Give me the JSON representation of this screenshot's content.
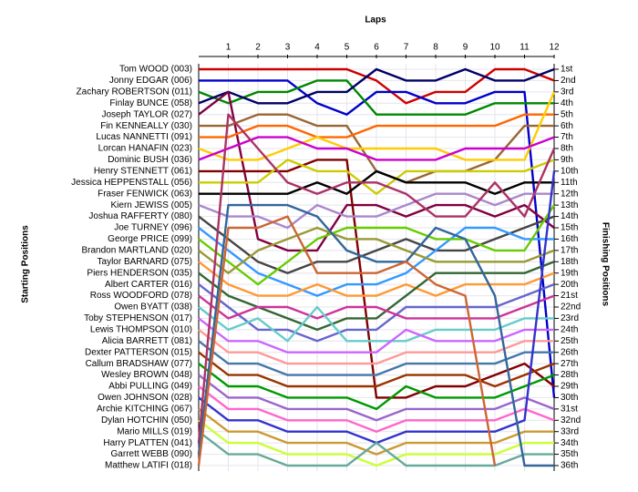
{
  "chart_data": {
    "type": "line",
    "title": "Laps",
    "ylabel": "Starting Positions",
    "y2label": "Finishing Positions",
    "x": [
      0,
      1,
      2,
      3,
      4,
      5,
      6,
      7,
      8,
      9,
      10,
      11,
      12
    ],
    "xlim": [
      0,
      12
    ],
    "xticks": [
      1,
      2,
      3,
      4,
      5,
      6,
      7,
      8,
      9,
      10,
      11,
      12
    ],
    "ylim": [
      36,
      1
    ],
    "yticks": [
      {
        "value": 1,
        "label": "1st"
      },
      {
        "value": 2,
        "label": "2nd"
      },
      {
        "value": 3,
        "label": "3rd"
      },
      {
        "value": 4,
        "label": "4th"
      },
      {
        "value": 5,
        "label": "5th"
      },
      {
        "value": 6,
        "label": "6th"
      },
      {
        "value": 7,
        "label": "7th"
      },
      {
        "value": 8,
        "label": "8th"
      },
      {
        "value": 9,
        "label": "9th"
      },
      {
        "value": 10,
        "label": "10th"
      },
      {
        "value": 11,
        "label": "11th"
      },
      {
        "value": 12,
        "label": "12th"
      },
      {
        "value": 13,
        "label": "13th"
      },
      {
        "value": 14,
        "label": "14th"
      },
      {
        "value": 15,
        "label": "15th"
      },
      {
        "value": 16,
        "label": "16th"
      },
      {
        "value": 17,
        "label": "17th"
      },
      {
        "value": 18,
        "label": "18th"
      },
      {
        "value": 19,
        "label": "19th"
      },
      {
        "value": 20,
        "label": "20th"
      },
      {
        "value": 21,
        "label": "21st"
      },
      {
        "value": 22,
        "label": "22nd"
      },
      {
        "value": 23,
        "label": "23rd"
      },
      {
        "value": 24,
        "label": "24th"
      },
      {
        "value": 25,
        "label": "25th"
      },
      {
        "value": 26,
        "label": "26th"
      },
      {
        "value": 27,
        "label": "27th"
      },
      {
        "value": 28,
        "label": "28th"
      },
      {
        "value": 29,
        "label": "29th"
      },
      {
        "value": 30,
        "label": "30th"
      },
      {
        "value": 31,
        "label": "31st"
      },
      {
        "value": 32,
        "label": "32nd"
      },
      {
        "value": 33,
        "label": "33rd"
      },
      {
        "value": 34,
        "label": "34th"
      },
      {
        "value": 35,
        "label": "35th"
      },
      {
        "value": 36,
        "label": "36th"
      }
    ],
    "grid": true,
    "series": [
      {
        "name": "Tom WOOD (003)",
        "color": "#cc0000",
        "values": [
          1,
          1,
          1,
          1,
          1,
          1,
          2,
          4,
          3,
          3,
          1,
          1,
          2
        ]
      },
      {
        "name": "Jonny EDGAR (006)",
        "color": "#0000cc",
        "values": [
          2,
          2,
          2,
          2,
          4,
          5,
          3,
          3,
          4,
          4,
          3,
          3,
          30
        ]
      },
      {
        "name": "Zachary ROBERTSON (011)",
        "color": "#008800",
        "values": [
          3,
          4,
          3,
          3,
          2,
          2,
          5,
          5,
          5,
          5,
          4,
          4,
          4
        ]
      },
      {
        "name": "Finlay BUNCE (058)",
        "color": "#000066",
        "values": [
          4,
          3,
          4,
          4,
          3,
          3,
          1,
          2,
          2,
          1,
          2,
          2,
          1
        ]
      },
      {
        "name": "Joseph TAYLOR (027)",
        "color": "#800040",
        "values": [
          5,
          3,
          16,
          17,
          17,
          13,
          13,
          14,
          13,
          13,
          14,
          13,
          15
        ]
      },
      {
        "name": "Fin KENNEALLY (030)",
        "color": "#996633",
        "values": [
          6,
          6,
          5,
          5,
          6,
          6,
          10,
          11,
          10,
          10,
          9,
          6,
          6
        ]
      },
      {
        "name": "Lucas NANNETTI (091)",
        "color": "#ff6600",
        "values": [
          7,
          7,
          6,
          6,
          7,
          7,
          6,
          6,
          6,
          6,
          6,
          5,
          5
        ]
      },
      {
        "name": "Lorcan HANAFIN (023)",
        "color": "#ffcc00",
        "values": [
          8,
          9,
          9,
          8,
          7,
          8,
          8,
          8,
          8,
          9,
          9,
          9,
          3
        ]
      },
      {
        "name": "Dominic BUSH (036)",
        "color": "#cc00cc",
        "values": [
          9,
          8,
          7,
          7,
          8,
          8,
          9,
          9,
          9,
          8,
          8,
          8,
          7
        ]
      },
      {
        "name": "Henry STENNETT (061)",
        "color": "#800000",
        "values": [
          10,
          10,
          10,
          10,
          9,
          9,
          30,
          30,
          29,
          29,
          28,
          27,
          29
        ]
      },
      {
        "name": "Jessica HEPPENSTALL (056)",
        "color": "#cccc00",
        "values": [
          11,
          11,
          11,
          9,
          10,
          10,
          12,
          10,
          10,
          10,
          10,
          10,
          9
        ]
      },
      {
        "name": "Fraser FENWICK (063)",
        "color": "#000000",
        "values": [
          12,
          12,
          12,
          12,
          11,
          12,
          10,
          11,
          11,
          11,
          12,
          11,
          11
        ]
      },
      {
        "name": "Kiern JEWISS (005)",
        "color": "#aa88cc",
        "values": [
          13,
          14,
          14,
          15,
          13,
          14,
          14,
          13,
          12,
          12,
          13,
          12,
          12
        ]
      },
      {
        "name": "Joshua RAFFERTY (080)",
        "color": "#444444",
        "values": [
          14,
          16,
          18,
          19,
          18,
          18,
          17,
          16,
          17,
          17,
          16,
          15,
          14
        ]
      },
      {
        "name": "Joe TURNEY (096)",
        "color": "#3399ff",
        "values": [
          15,
          17,
          19,
          20,
          21,
          20,
          20,
          19,
          17,
          15,
          15,
          16,
          16
        ]
      },
      {
        "name": "George PRICE (099)",
        "color": "#66cc00",
        "values": [
          16,
          18,
          20,
          18,
          16,
          15,
          15,
          15,
          16,
          16,
          17,
          17,
          13
        ]
      },
      {
        "name": "Brandon MARTLAND (020)",
        "color": "#999933",
        "values": [
          17,
          19,
          17,
          16,
          15,
          16,
          16,
          17,
          18,
          18,
          18,
          18,
          17
        ]
      },
      {
        "name": "Taylor BARNARD (075)",
        "color": "#ff9933",
        "values": [
          18,
          20,
          21,
          21,
          20,
          21,
          21,
          20,
          21,
          20,
          20,
          20,
          19
        ]
      },
      {
        "name": "Piers HENDERSON (035)",
        "color": "#336633",
        "values": [
          19,
          21,
          22,
          23,
          24,
          23,
          23,
          21,
          19,
          19,
          19,
          19,
          18
        ]
      },
      {
        "name": "Albert CARTER (016)",
        "color": "#6666cc",
        "values": [
          20,
          22,
          24,
          24,
          25,
          24,
          24,
          22,
          22,
          22,
          22,
          21,
          20
        ]
      },
      {
        "name": "Ross WOODFORD (078)",
        "color": "#cc3399",
        "values": [
          21,
          23,
          22,
          22,
          23,
          22,
          22,
          23,
          23,
          23,
          23,
          22,
          21
        ]
      },
      {
        "name": "Owen BYATT (038)",
        "color": "#66cccc",
        "values": [
          22,
          24,
          23,
          25,
          22,
          25,
          25,
          25,
          24,
          24,
          24,
          23,
          23
        ]
      },
      {
        "name": "Toby STEPHENSON (017)",
        "color": "#cc66ff",
        "values": [
          23,
          25,
          25,
          26,
          26,
          26,
          26,
          24,
          25,
          25,
          25,
          24,
          24
        ]
      },
      {
        "name": "Lewis THOMPSON (010)",
        "color": "#ff9999",
        "values": [
          24,
          26,
          26,
          27,
          27,
          27,
          27,
          26,
          26,
          26,
          26,
          25,
          25
        ]
      },
      {
        "name": "Alicia BARRETT (081)",
        "color": "#4477aa",
        "values": [
          25,
          27,
          27,
          28,
          28,
          28,
          28,
          27,
          27,
          27,
          27,
          26,
          26
        ]
      },
      {
        "name": "Dexter PATTERSON (015)",
        "color": "#993300",
        "values": [
          26,
          28,
          28,
          29,
          29,
          29,
          29,
          28,
          28,
          28,
          29,
          28,
          27
        ]
      },
      {
        "name": "Callum BRADSHAW (077)",
        "color": "#009900",
        "values": [
          27,
          29,
          29,
          30,
          30,
          30,
          31,
          29,
          30,
          30,
          30,
          29,
          28
        ]
      },
      {
        "name": "Wesley BROWN (048)",
        "color": "#9966cc",
        "values": [
          28,
          30,
          30,
          31,
          31,
          31,
          32,
          31,
          31,
          31,
          31,
          30,
          31
        ]
      },
      {
        "name": "Abbi PULLING (049)",
        "color": "#ff66cc",
        "values": [
          29,
          31,
          31,
          32,
          32,
          32,
          33,
          32,
          32,
          32,
          32,
          31,
          32
        ]
      },
      {
        "name": "Owen JOHNSON (028)",
        "color": "#3333cc",
        "values": [
          30,
          32,
          32,
          33,
          33,
          33,
          34,
          33,
          33,
          33,
          33,
          32,
          10
        ]
      },
      {
        "name": "Archie KITCHING (067)",
        "color": "#cc9933",
        "values": [
          31,
          33,
          33,
          34,
          34,
          34,
          35,
          34,
          34,
          34,
          34,
          33,
          33
        ]
      },
      {
        "name": "Dylan HOTCHIN (050)",
        "color": "#ccff33",
        "values": [
          32,
          34,
          34,
          35,
          35,
          35,
          36,
          35,
          35,
          35,
          35,
          34,
          34
        ]
      },
      {
        "name": "Mario MILLS (019)",
        "color": "#66aa99",
        "values": [
          33,
          35,
          35,
          36,
          36,
          36,
          34,
          36,
          36,
          36,
          36,
          35,
          35
        ]
      },
      {
        "name": "Harry PLATTEN (041)",
        "color": "#aa3366",
        "values": [
          34,
          5,
          8,
          11,
          12,
          11,
          11,
          12,
          14,
          14,
          11,
          14,
          8
        ]
      },
      {
        "name": "Garrett WEBB (090)",
        "color": "#336699",
        "values": [
          35,
          13,
          13,
          13,
          14,
          17,
          18,
          18,
          15,
          16,
          21,
          36,
          36
        ]
      },
      {
        "name": "Matthew LATIFI (018)",
        "color": "#cc6633",
        "values": [
          36,
          15,
          15,
          14,
          19,
          19,
          19,
          18,
          20,
          21,
          36,
          null,
          null
        ]
      }
    ]
  }
}
